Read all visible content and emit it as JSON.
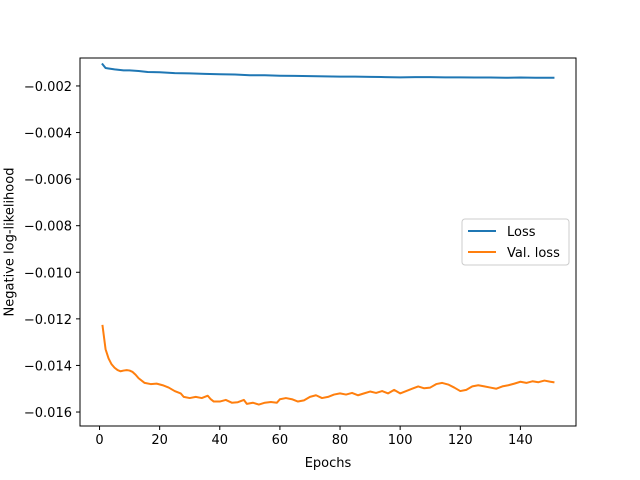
{
  "chart_data": {
    "type": "line",
    "title": "",
    "xlabel": "Epochs",
    "ylabel": "Negative log-likelihood",
    "xlim": [
      -6.5,
      158.5
    ],
    "ylim": [
      -0.0166,
      -0.0008
    ],
    "xticks": [
      0,
      20,
      40,
      60,
      80,
      100,
      120,
      140
    ],
    "yticks": [
      -0.016,
      -0.014,
      -0.012,
      -0.01,
      -0.008,
      -0.006,
      -0.004,
      -0.002
    ],
    "ytick_labels": [
      "−0.016",
      "−0.014",
      "−0.012",
      "−0.010",
      "−0.008",
      "−0.006",
      "−0.004",
      "−0.002"
    ],
    "grid": false,
    "legend_position": "center-right",
    "series": [
      {
        "name": "Loss",
        "color": "#1f77b4",
        "points": [
          [
            1,
            -0.00107
          ],
          [
            2,
            -0.00123
          ],
          [
            3,
            -0.00125
          ],
          [
            5,
            -0.00129
          ],
          [
            8,
            -0.00133
          ],
          [
            10,
            -0.00133
          ],
          [
            13,
            -0.00136
          ],
          [
            16,
            -0.0014
          ],
          [
            20,
            -0.00141
          ],
          [
            25,
            -0.00145
          ],
          [
            30,
            -0.00146
          ],
          [
            35,
            -0.00148
          ],
          [
            40,
            -0.0015
          ],
          [
            45,
            -0.00151
          ],
          [
            50,
            -0.00154
          ],
          [
            55,
            -0.00154
          ],
          [
            60,
            -0.00156
          ],
          [
            65,
            -0.00157
          ],
          [
            70,
            -0.00158
          ],
          [
            75,
            -0.00159
          ],
          [
            80,
            -0.0016
          ],
          [
            85,
            -0.0016
          ],
          [
            90,
            -0.00161
          ],
          [
            95,
            -0.00162
          ],
          [
            100,
            -0.00163
          ],
          [
            105,
            -0.00162
          ],
          [
            110,
            -0.00162
          ],
          [
            115,
            -0.00163
          ],
          [
            120,
            -0.00163
          ],
          [
            125,
            -0.00164
          ],
          [
            130,
            -0.00164
          ],
          [
            135,
            -0.00165
          ],
          [
            140,
            -0.00164
          ],
          [
            145,
            -0.00165
          ],
          [
            151,
            -0.00165
          ]
        ]
      },
      {
        "name": "Val. loss",
        "color": "#ff7f0e",
        "points": [
          [
            1,
            -0.0123
          ],
          [
            2,
            -0.0133
          ],
          [
            3,
            -0.0137
          ],
          [
            4,
            -0.01395
          ],
          [
            5,
            -0.0141
          ],
          [
            6,
            -0.0142
          ],
          [
            7,
            -0.01425
          ],
          [
            8,
            -0.01422
          ],
          [
            9,
            -0.0142
          ],
          [
            10,
            -0.01422
          ],
          [
            11,
            -0.01428
          ],
          [
            12,
            -0.0144
          ],
          [
            13,
            -0.01455
          ],
          [
            15,
            -0.01475
          ],
          [
            17,
            -0.0148
          ],
          [
            19,
            -0.01478
          ],
          [
            21,
            -0.01485
          ],
          [
            23,
            -0.01495
          ],
          [
            25,
            -0.0151
          ],
          [
            27,
            -0.0152
          ],
          [
            28,
            -0.01535
          ],
          [
            30,
            -0.0154
          ],
          [
            32,
            -0.01535
          ],
          [
            34,
            -0.0154
          ],
          [
            36,
            -0.0153
          ],
          [
            37,
            -0.01545
          ],
          [
            38,
            -0.01555
          ],
          [
            40,
            -0.01555
          ],
          [
            42,
            -0.01548
          ],
          [
            44,
            -0.0156
          ],
          [
            46,
            -0.01558
          ],
          [
            48,
            -0.01548
          ],
          [
            49,
            -0.01565
          ],
          [
            51,
            -0.0156
          ],
          [
            53,
            -0.01568
          ],
          [
            55,
            -0.0156
          ],
          [
            57,
            -0.01557
          ],
          [
            59,
            -0.0156
          ],
          [
            60,
            -0.01545
          ],
          [
            62,
            -0.0154
          ],
          [
            64,
            -0.01545
          ],
          [
            66,
            -0.01555
          ],
          [
            68,
            -0.0155
          ],
          [
            70,
            -0.01535
          ],
          [
            72,
            -0.01528
          ],
          [
            74,
            -0.0154
          ],
          [
            76,
            -0.01535
          ],
          [
            78,
            -0.01525
          ],
          [
            80,
            -0.0152
          ],
          [
            82,
            -0.01525
          ],
          [
            84,
            -0.01518
          ],
          [
            86,
            -0.01528
          ],
          [
            88,
            -0.0152
          ],
          [
            90,
            -0.01512
          ],
          [
            92,
            -0.01518
          ],
          [
            94,
            -0.0151
          ],
          [
            96,
            -0.0152
          ],
          [
            98,
            -0.01505
          ],
          [
            100,
            -0.0152
          ],
          [
            102,
            -0.0151
          ],
          [
            104,
            -0.015
          ],
          [
            106,
            -0.0149
          ],
          [
            108,
            -0.01498
          ],
          [
            110,
            -0.01495
          ],
          [
            112,
            -0.0148
          ],
          [
            114,
            -0.01475
          ],
          [
            116,
            -0.01482
          ],
          [
            118,
            -0.01495
          ],
          [
            120,
            -0.0151
          ],
          [
            122,
            -0.01505
          ],
          [
            124,
            -0.0149
          ],
          [
            126,
            -0.01485
          ],
          [
            128,
            -0.0149
          ],
          [
            130,
            -0.01495
          ],
          [
            132,
            -0.015
          ],
          [
            134,
            -0.0149
          ],
          [
            136,
            -0.01485
          ],
          [
            138,
            -0.01478
          ],
          [
            140,
            -0.0147
          ],
          [
            142,
            -0.01475
          ],
          [
            144,
            -0.01468
          ],
          [
            146,
            -0.01472
          ],
          [
            148,
            -0.01465
          ],
          [
            150,
            -0.0147
          ],
          [
            151,
            -0.01472
          ]
        ]
      }
    ]
  }
}
